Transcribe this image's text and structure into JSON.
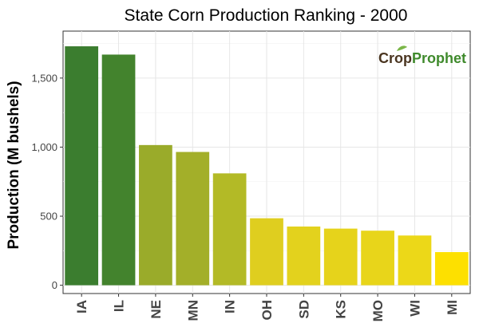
{
  "chart_data": {
    "type": "bar",
    "title": "State Corn Production Ranking - 2000",
    "xlabel": "",
    "ylabel": "Production (M bushels)",
    "categories": [
      "IA",
      "IL",
      "NE",
      "MN",
      "IN",
      "OH",
      "SD",
      "KS",
      "MO",
      "WI",
      "MI"
    ],
    "values": [
      1730,
      1670,
      1015,
      965,
      810,
      485,
      425,
      410,
      395,
      360,
      240
    ],
    "colors": [
      "#3b7d2f",
      "#43832d",
      "#9aab2a",
      "#a3af29",
      "#b3ba26",
      "#dfce1f",
      "#e3d21d",
      "#e6d31b",
      "#e8d51a",
      "#ecd818",
      "#fde000"
    ],
    "yticks": [
      0,
      500,
      1000,
      1500
    ],
    "ytick_labels": [
      "0",
      "500",
      "1,000",
      "1,500"
    ],
    "ylim": [
      -60,
      1840
    ],
    "grid": true,
    "legend": "none"
  },
  "logo": {
    "part1": "Crop",
    "part2": "Prophet",
    "icon": "leaf-icon"
  }
}
